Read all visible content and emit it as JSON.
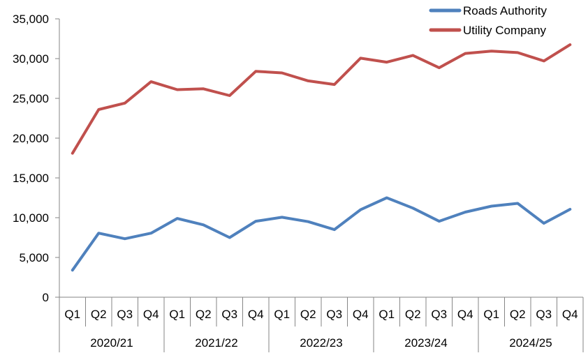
{
  "chart_data": {
    "type": "line",
    "title": "",
    "xlabel": "",
    "ylabel": "",
    "ylim": [
      0,
      35000
    ],
    "yticks": [
      "0",
      "5,000",
      "10,000",
      "15,000",
      "20,000",
      "25,000",
      "30,000",
      "35,000"
    ],
    "ytick_values": [
      0,
      5000,
      10000,
      15000,
      20000,
      25000,
      30000,
      35000
    ],
    "grid": false,
    "legend_position": "top-right",
    "years": [
      "2020/21",
      "2021/22",
      "2022/23",
      "2023/24",
      "2024/25"
    ],
    "quarters": [
      "Q1",
      "Q2",
      "Q3",
      "Q4"
    ],
    "categories": [
      "2020/21 Q1",
      "2020/21 Q2",
      "2020/21 Q3",
      "2020/21 Q4",
      "2021/22 Q1",
      "2021/22 Q2",
      "2021/22 Q3",
      "2021/22 Q4",
      "2022/23 Q1",
      "2022/23 Q2",
      "2022/23 Q3",
      "2022/23 Q4",
      "2023/24 Q1",
      "2023/24 Q2",
      "2023/24 Q3",
      "2023/24 Q4",
      "2024/25 Q1",
      "2024/25 Q2",
      "2024/25 Q3",
      "2024/25 Q4"
    ],
    "series": [
      {
        "name": "Roads Authority",
        "color": "#4F81BD",
        "values": [
          3400,
          8050,
          7350,
          8050,
          9900,
          9100,
          7500,
          9550,
          10050,
          9500,
          8500,
          11000,
          12500,
          11200,
          9550,
          10700,
          11450,
          11800,
          9300,
          11050
        ]
      },
      {
        "name": "Utility Company",
        "color": "#C0504D",
        "values": [
          18100,
          23600,
          24400,
          27100,
          26100,
          26200,
          25350,
          28400,
          28200,
          27200,
          26750,
          30050,
          29550,
          30400,
          28850,
          30650,
          30950,
          30750,
          29700,
          31750
        ]
      }
    ]
  }
}
